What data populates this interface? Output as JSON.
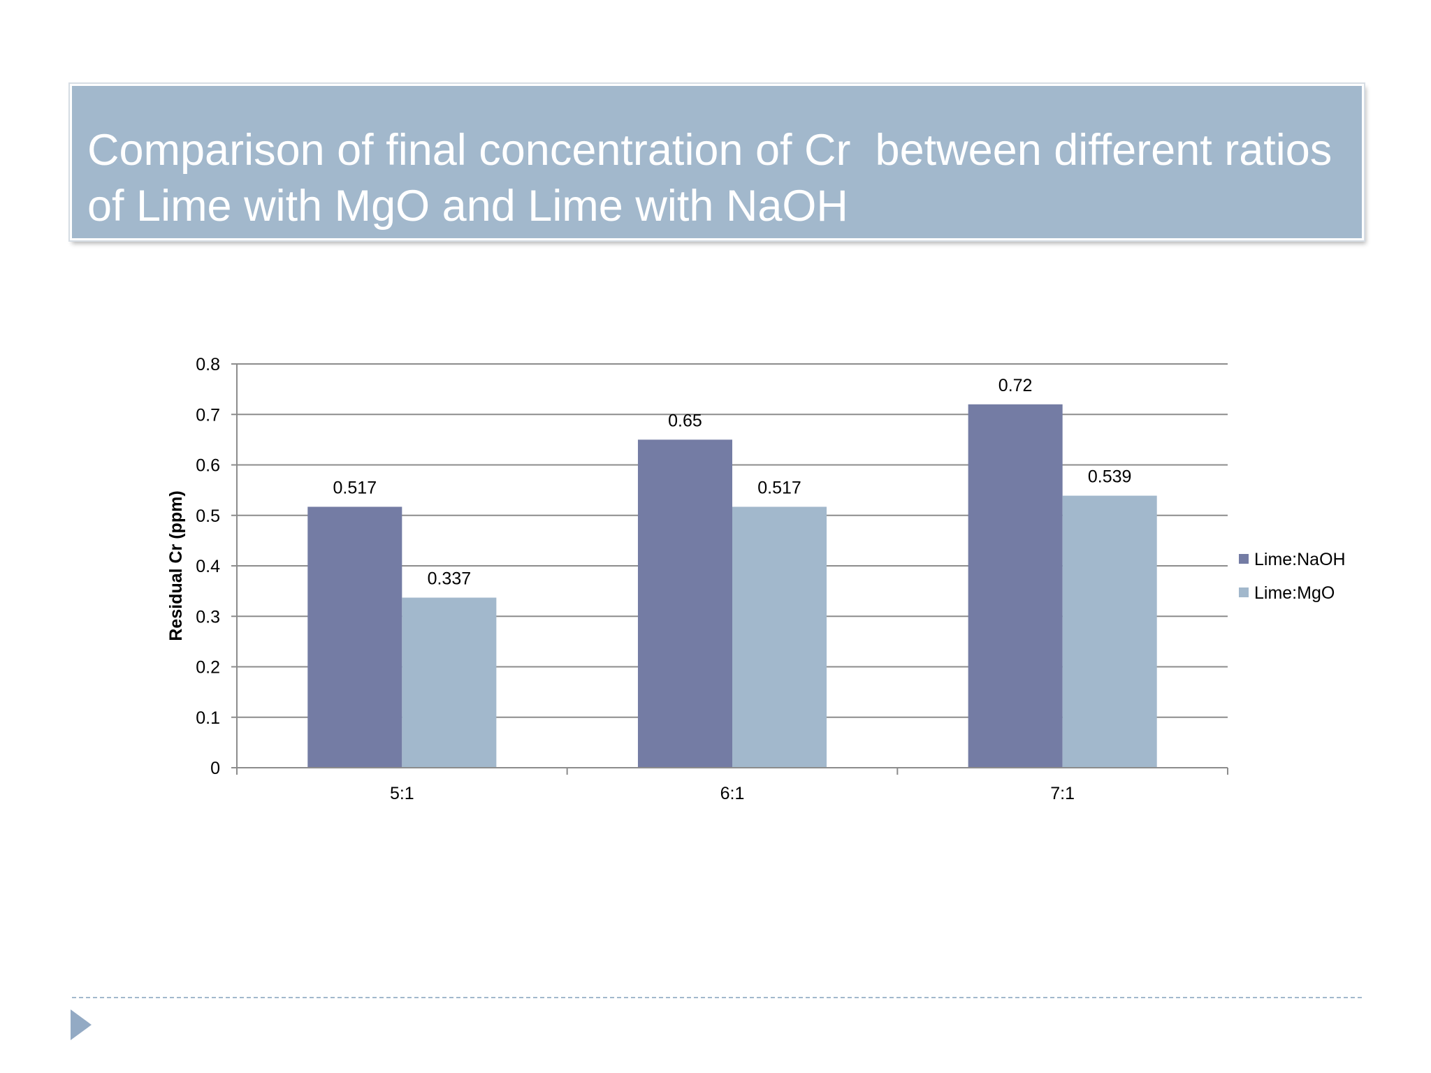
{
  "slide": {
    "title": "Comparison of final concentration of Cr  between different ratios of Lime with MgO and Lime with NaOH"
  },
  "colors": {
    "title_background": "#a2b8cc",
    "lime_naoh": "#747ca4",
    "lime_mgo": "#a2b8cc",
    "gridline": "#8c8c8c",
    "footer_accent": "#93aac4"
  },
  "chart_data": {
    "type": "bar",
    "title": "",
    "xlabel": "",
    "ylabel": "Residual Cr (ppm)",
    "categories": [
      "5:1",
      "6:1",
      "7:1"
    ],
    "series": [
      {
        "name": "Lime:NaOH",
        "values": [
          0.517,
          0.65,
          0.72
        ],
        "labels": [
          "0.517",
          "0.65",
          "0.72"
        ]
      },
      {
        "name": "Lime:MgO",
        "values": [
          0.337,
          0.517,
          0.539
        ],
        "labels": [
          "0.337",
          "0.517",
          "0.539"
        ]
      }
    ],
    "ylim": [
      0,
      0.8
    ],
    "yticks": [
      0,
      0.1,
      0.2,
      0.3,
      0.4,
      0.5,
      0.6,
      0.7,
      0.8
    ],
    "ytick_labels": [
      "0",
      "0.1",
      "0.2",
      "0.3",
      "0.4",
      "0.5",
      "0.6",
      "0.7",
      "0.8"
    ],
    "grid": true,
    "legend_position": "right"
  }
}
